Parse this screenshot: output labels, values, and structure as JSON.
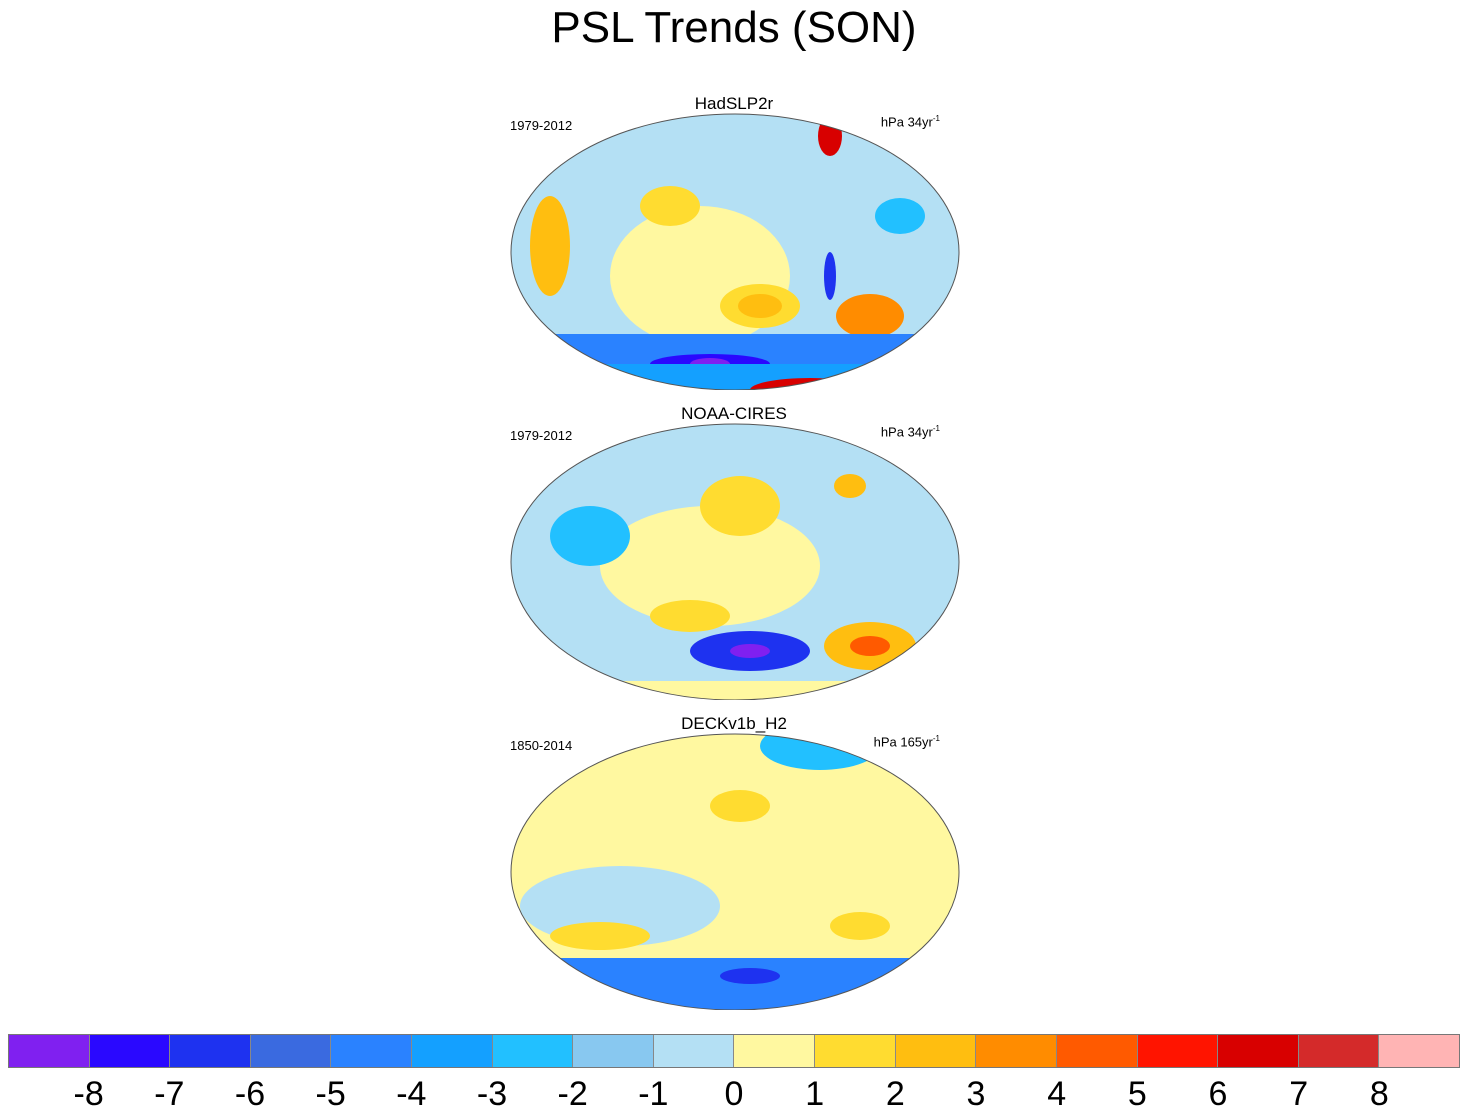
{
  "title": "PSL Trends (SON)",
  "panels": [
    {
      "name": "HadSLP2r",
      "period": "1979-2012",
      "units_base": "hPa 34yr",
      "units_exp": "-1"
    },
    {
      "name": "NOAA-CIRES",
      "period": "1979-2012",
      "units_base": "hPa 34yr",
      "units_exp": "-1"
    },
    {
      "name": "DECKv1b_H2",
      "period": "1850-2014",
      "units_base": "hPa 165yr",
      "units_exp": "-1"
    }
  ],
  "colorbar": {
    "labels": [
      "-8",
      "-7",
      "-6",
      "-5",
      "-4",
      "-3",
      "-2",
      "-1",
      "0",
      "1",
      "2",
      "3",
      "4",
      "5",
      "6",
      "7",
      "8"
    ],
    "colors": [
      "#8020f0",
      "#2a08ff",
      "#1e32f0",
      "#3a6ae0",
      "#2a82ff",
      "#14a0ff",
      "#22c0ff",
      "#88c8f0",
      "#b4e0f4",
      "#fff8a0",
      "#ffdc30",
      "#ffbe10",
      "#ff8c00",
      "#ff5a00",
      "#ff1400",
      "#d80000",
      "#d42a2a",
      "#ffb4b4"
    ]
  }
}
